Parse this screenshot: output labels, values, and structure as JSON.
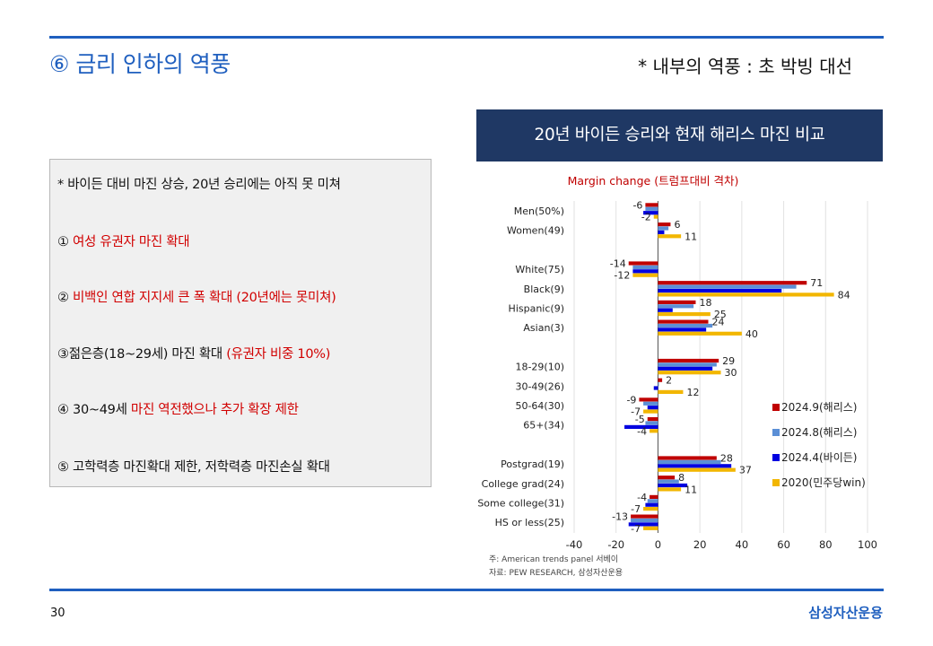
{
  "header": {
    "title": "⑥ 금리 인하의 역풍",
    "subtitle_right": "* 내부의 역풍 : 초 박빙 대선"
  },
  "summary": {
    "heading": "* 바이든 대비 마진 상승, 20년 승리에는 아직 못 미쳐",
    "items": [
      {
        "prefix": "① ",
        "black": "",
        "red": "여성 유권자 마진 확대"
      },
      {
        "prefix": "② ",
        "black": "",
        "red": "비백인 연합 지지세 큰 폭 확대 (20년에는 못미쳐)"
      },
      {
        "prefix": "③",
        "black": "젊은층(18~29세)  마진 확대 ",
        "red": "(유권자 비중 10%)"
      },
      {
        "prefix": "④ ",
        "black": "30~49세 ",
        "red": "마진 역전했으나 추가 확장 제한"
      },
      {
        "prefix": "⑤ ",
        "black": "고학력층 마진확대 제한, 저학력층 마진손실 확대",
        "red": ""
      }
    ]
  },
  "chart_header": "20년 바이든 승리와 현재 해리스 마진 비교",
  "chart_data": {
    "type": "bar",
    "orientation": "horizontal",
    "title": "Margin change (트럼프대비 격차)",
    "categories": [
      "Men(50%)",
      "Women(49)",
      "White(75)",
      "Black(9)",
      "Hispanic(9)",
      "Asian(3)",
      "18-29(10)",
      "30-49(26)",
      "50-64(30)",
      "65+(34)",
      "Postgrad(19)",
      "College grad(24)",
      "Some college(31)",
      "HS or less(25)"
    ],
    "category_labels": [
      "Men(50%)",
      "Women(49)",
      "White(75)",
      "Black(9)",
      "Hispanic(9)",
      "Asian(3)",
      "18-29(10)",
      "30-49(26)",
      "50-64(30)",
      "65+(34)",
      "Postgrad(19)",
      "College grad(24)",
      "Some college(31)",
      "HS or less(25)"
    ],
    "series": [
      {
        "name": "2024.9(해리스)",
        "color": "#c00000",
        "values": [
          -6,
          6,
          -14,
          71,
          18,
          24,
          29,
          2,
          -9,
          -5,
          28,
          8,
          -4,
          -13
        ],
        "labeled": true
      },
      {
        "name": "2024.8(해리스)",
        "color": "#5b8fd6",
        "values": [
          -6,
          5,
          -12,
          66,
          17,
          26,
          28,
          0,
          -7,
          -6,
          30,
          10,
          -5,
          -13
        ],
        "labeled": false
      },
      {
        "name": "2024.4(바이든)",
        "color": "#0000e0",
        "values": [
          -7,
          3,
          -12,
          59,
          7,
          23,
          26,
          -2,
          -5,
          -16,
          35,
          14,
          -6,
          -14
        ],
        "labeled": false
      },
      {
        "name": "2020(민주당win)",
        "color": "#f2b600",
        "values": [
          -2,
          11,
          -12,
          84,
          25,
          40,
          30,
          12,
          -7,
          -4,
          37,
          11,
          -7,
          -7
        ],
        "labeled": true
      }
    ],
    "label_values": {
      "2024.9(해리스)": [
        "-6",
        "6",
        "-14",
        "71",
        "18",
        "24",
        "29",
        "2",
        "-9",
        "-5",
        "28",
        "8",
        "-4",
        "-13"
      ],
      "2020(민주당win)": [
        "-2",
        "11",
        "-12",
        "84",
        "25",
        "40",
        "30",
        "12",
        "-7",
        "-4",
        "37",
        "11",
        "-7",
        "-7"
      ]
    },
    "xlim": [
      -40,
      100
    ],
    "xticks": [
      "-40",
      "-20",
      "0",
      "20",
      "40",
      "60",
      "80",
      "100"
    ],
    "legend": "right",
    "grid": true
  },
  "source_notes": {
    "note1": "주: American trends panel 서베이",
    "note2": "자료: PEW RESEARCH, 삼성자산운용"
  },
  "footer": {
    "page_number": "30",
    "brand": "삼성자산운용"
  }
}
